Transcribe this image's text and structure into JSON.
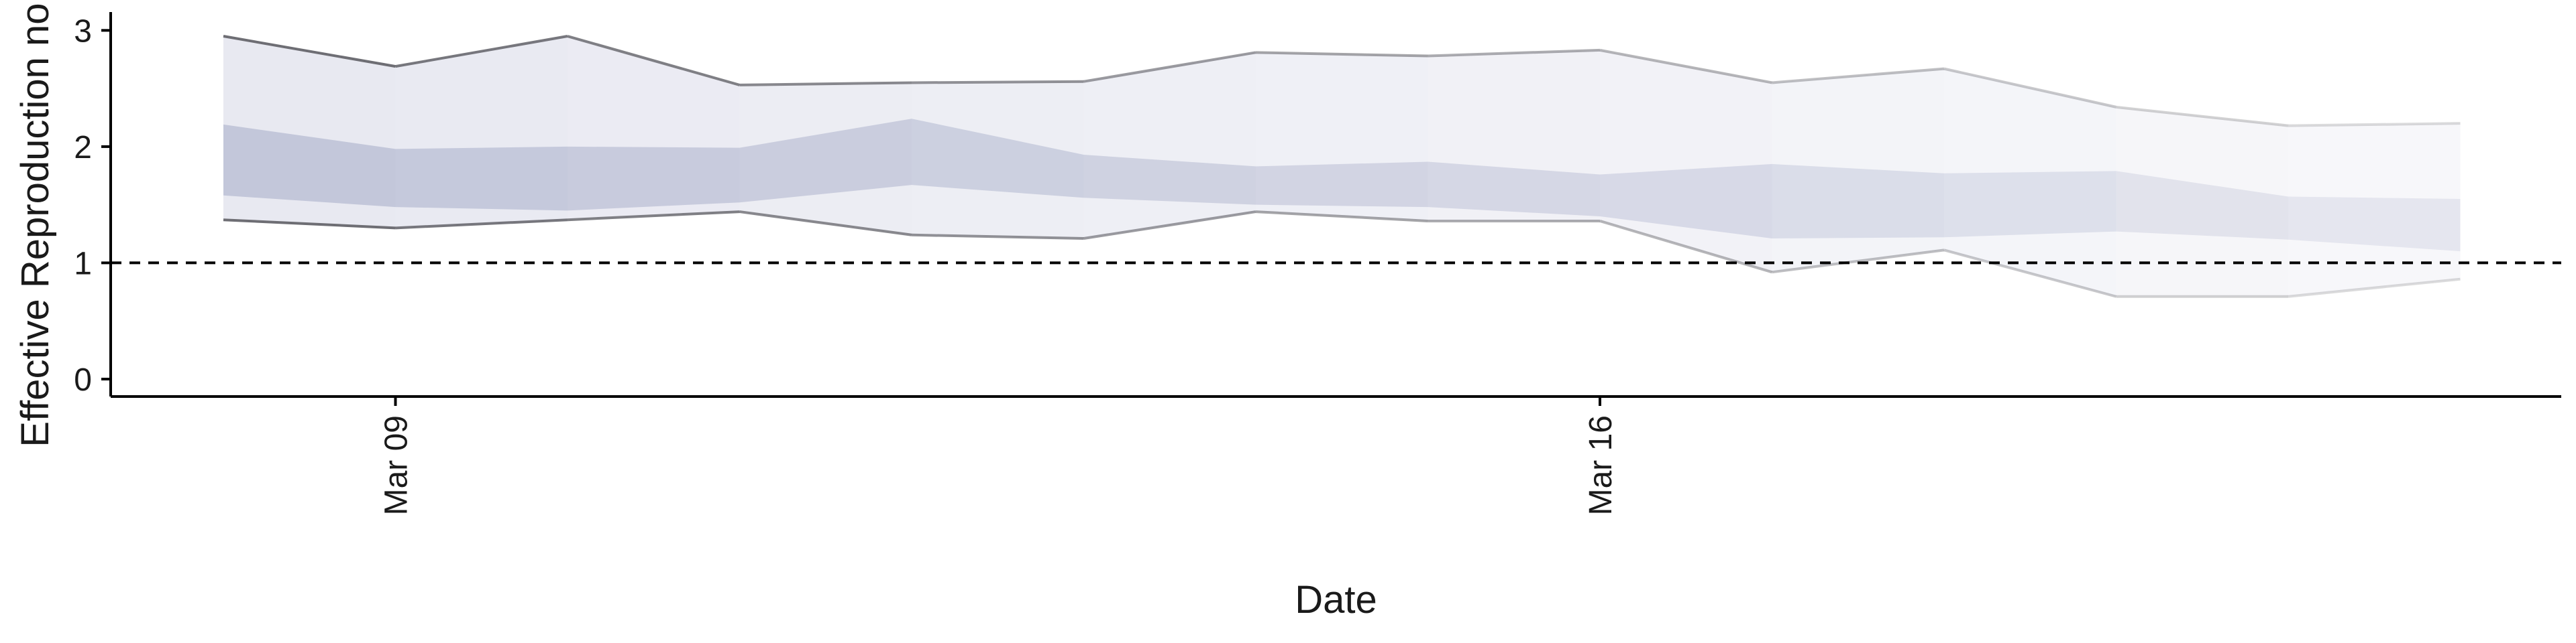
{
  "chart_data": {
    "type": "area",
    "title": "",
    "xlabel": "Date",
    "ylabel": "Effective Reproduction no.",
    "ylim": [
      -0.15,
      3.1
    ],
    "y_ticks": [
      0,
      1,
      2,
      3
    ],
    "x_ticks": [
      {
        "date": "2020-03-09",
        "label": "Mar 09"
      },
      {
        "date": "2020-03-16",
        "label": "Mar 16"
      }
    ],
    "reference_line": {
      "y": 1,
      "style": "dashed"
    },
    "x": [
      "2020-03-08",
      "2020-03-09",
      "2020-03-10",
      "2020-03-11",
      "2020-03-12",
      "2020-03-13",
      "2020-03-14",
      "2020-03-15",
      "2020-03-16",
      "2020-03-17",
      "2020-03-18",
      "2020-03-19",
      "2020-03-20",
      "2020-03-21"
    ],
    "series": [
      {
        "role": "interval_outer_upper",
        "values": [
          2.95,
          2.69,
          2.95,
          2.53,
          2.55,
          2.56,
          2.81,
          2.78,
          2.83,
          2.55,
          2.67,
          2.34,
          2.18,
          2.2
        ]
      },
      {
        "role": "interval_outer_lower",
        "values": [
          1.37,
          1.3,
          1.37,
          1.44,
          1.24,
          1.21,
          1.44,
          1.36,
          1.36,
          0.92,
          1.11,
          0.71,
          0.71,
          0.86
        ]
      },
      {
        "role": "interval_inner_upper",
        "values": [
          2.19,
          1.98,
          2.0,
          1.99,
          2.24,
          1.93,
          1.83,
          1.87,
          1.76,
          1.85,
          1.77,
          1.79,
          1.57,
          1.55
        ]
      },
      {
        "role": "interval_inner_lower",
        "values": [
          1.58,
          1.48,
          1.45,
          1.52,
          1.67,
          1.56,
          1.5,
          1.48,
          1.4,
          1.21,
          1.22,
          1.27,
          1.2,
          1.1
        ]
      }
    ],
    "colors": {
      "outer_band": "#e8e9f1",
      "inner_band": "#c3c7da",
      "outer_line": "#6e6e74"
    },
    "grid": false,
    "legend": "none"
  }
}
